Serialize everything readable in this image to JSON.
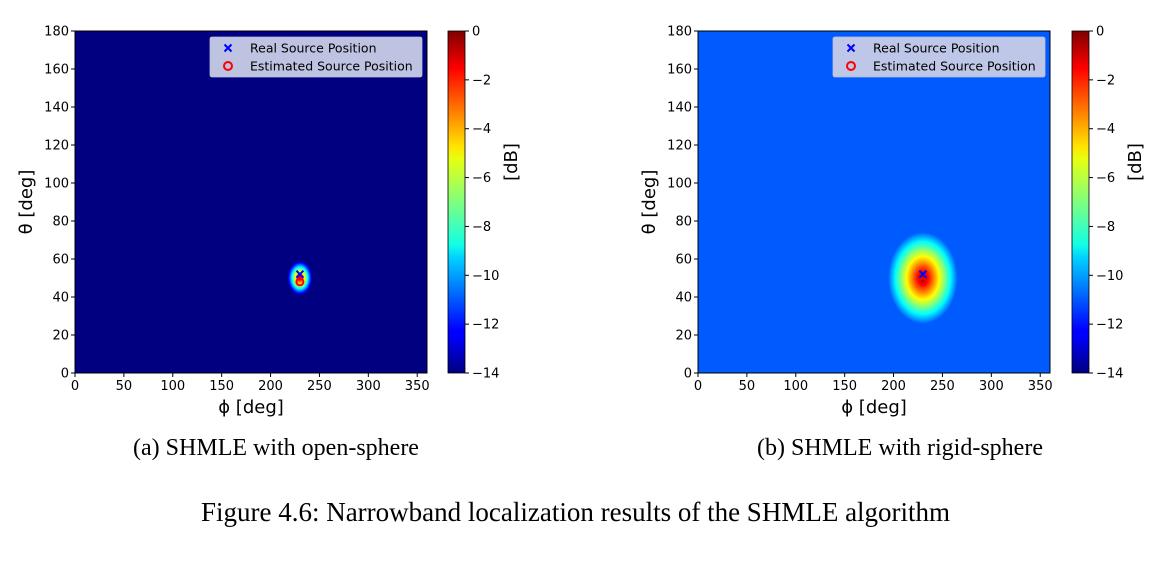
{
  "figure_caption": "Figure 4.6: Narrowband localization results of the SHMLE algorithm",
  "colors": {
    "legend_bg": "#c8cde6",
    "real_marker": "#0000ff",
    "estimated_marker": "#ff0000"
  },
  "chart_data": [
    {
      "type": "heatmap",
      "caption": "(a) SHMLE with open-sphere",
      "xlabel": "ϕ [deg]",
      "ylabel": "θ [deg]",
      "xlim": [
        0,
        360
      ],
      "ylim": [
        0,
        180
      ],
      "xticks": [
        0,
        50,
        100,
        150,
        200,
        250,
        300,
        350
      ],
      "yticks": [
        0,
        20,
        40,
        60,
        80,
        100,
        120,
        140,
        160,
        180
      ],
      "colorbar": {
        "label": "[dB]",
        "min": -14,
        "max": 0,
        "ticks": [
          0,
          -2,
          -4,
          -6,
          -8,
          -10,
          -12,
          -14
        ],
        "colormap": "jet"
      },
      "background_db": -14,
      "peak": {
        "phi": 230,
        "theta": 50,
        "value_db": 0
      },
      "markers": [
        {
          "name": "Real Source Position",
          "symbol": "x",
          "phi": 230,
          "theta": 52
        },
        {
          "name": "Estimated Source Position",
          "symbol": "o",
          "phi": 230,
          "theta": 48
        }
      ],
      "legend": [
        "Real Source Position",
        "Estimated Source Position"
      ],
      "legend_loc": "upper-right"
    },
    {
      "type": "heatmap",
      "caption": "(b) SHMLE with rigid-sphere",
      "xlabel": "ϕ [deg]",
      "ylabel": "θ [deg]",
      "xlim": [
        0,
        360
      ],
      "ylim": [
        0,
        180
      ],
      "xticks": [
        0,
        50,
        100,
        150,
        200,
        250,
        300,
        350
      ],
      "yticks": [
        0,
        20,
        40,
        60,
        80,
        100,
        120,
        140,
        160,
        180
      ],
      "colorbar": {
        "label": "[dB]",
        "min": -14,
        "max": 0,
        "ticks": [
          0,
          -2,
          -4,
          -6,
          -8,
          -10,
          -12,
          -14
        ],
        "colormap": "jet"
      },
      "background_db": -11,
      "peak": {
        "phi": 230,
        "theta": 50,
        "value_db": 0
      },
      "markers": [
        {
          "name": "Real Source Position",
          "symbol": "x",
          "phi": 230,
          "theta": 52
        },
        {
          "name": "Estimated Source Position",
          "symbol": "o",
          "phi": 230,
          "theta": 48
        }
      ],
      "legend": [
        "Real Source Position",
        "Estimated Source Position"
      ],
      "legend_loc": "upper-right"
    }
  ]
}
